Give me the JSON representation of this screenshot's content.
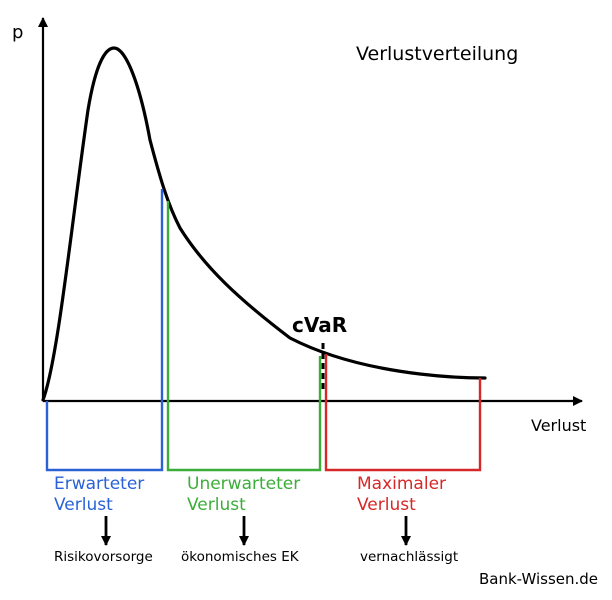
{
  "diagram": {
    "title": "Verlustverteilung",
    "y_axis_label": "p",
    "x_axis_label": "Verlust",
    "marker_label": "cVaR",
    "source": "Bank-Wissen.de",
    "colors": {
      "curve": "#000000",
      "expected": "#2a62d6",
      "unexpected": "#3dad3a",
      "maximum": "#d62828"
    },
    "segments": [
      {
        "line1": "Erwarteter",
        "line2": "Verlust",
        "use": "Risikovorsorge"
      },
      {
        "line1": "Unerwarteter",
        "line2": "Verlust",
        "use": "ökonomisches EK"
      },
      {
        "line1": "Maximaler",
        "line2": "Verlust",
        "use": "vernachlässigt"
      }
    ]
  }
}
